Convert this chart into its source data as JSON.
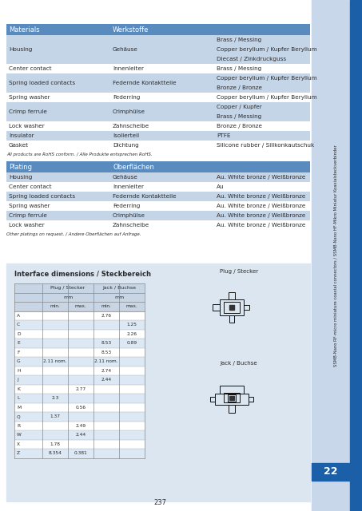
{
  "bg_color": "#dce6f0",
  "white": "#ffffff",
  "header_blue": "#5a8bbf",
  "row_light": "#c5d5e8",
  "row_white": "#ffffff",
  "text_dark": "#2a2a2a",
  "sidebar_blue": "#1a5fa8",
  "sidebar_light": "#c8d8ea",
  "page_bg": "#ffffff",
  "page_number": "237",
  "chapter_number": "22",
  "sidebar_text": "SSMB-Nano RF-micro miniature coaxial connectors / SSMB-Nano HF-Mikro Miniatur Koaxialsteckverbinder",
  "materials_title": "Materials",
  "werkstoffe_title": "Werkstoffe",
  "materials_rows": [
    [
      "Housing",
      "Gehäuse",
      [
        "Brass / Messing",
        "Copper berylium / Kupfer Berylium",
        "Diecast / Zinkdruckguss"
      ]
    ],
    [
      "Center contact",
      "Innenleiter",
      [
        "Brass / Messing"
      ]
    ],
    [
      "Spring loaded contacts",
      "Federnde Kontaktteile",
      [
        "Copper berylium / Kupfer Berylium",
        "Bronze / Bronze"
      ]
    ],
    [
      "Spring washer",
      "Federring",
      [
        "Copper berylium / Kupfer Berylium"
      ]
    ],
    [
      "Crimp ferrule",
      "Crimphülse",
      [
        "Copper / Kupfer",
        "Brass / Messing"
      ]
    ],
    [
      "Lock washer",
      "Zahnscheibe",
      [
        "Bronze / Bronze"
      ]
    ],
    [
      "Insulator",
      "Isolierteil",
      [
        "PTFE"
      ]
    ],
    [
      "Gasket",
      "Dichtung",
      [
        "Silicone rubber / Silikonkautschuk"
      ]
    ]
  ],
  "rohs_note": "All products are RoHS conform. / Alle Produkte entsprechen RoHS.",
  "plating_title": "Plating",
  "oberflachen_title": "Oberflächen",
  "plating_rows": [
    [
      "Housing",
      "Gehäuse",
      "Au. White bronze / Weißbronze"
    ],
    [
      "Center contact",
      "Innenleiter",
      "Au"
    ],
    [
      "Spring loaded contacts",
      "Federnde Kontaktteile",
      "Au. White bronze / Weißbronze"
    ],
    [
      "Spring washer",
      "Federring",
      "Au. White bronze / Weißbronze"
    ],
    [
      "Crimp ferrule",
      "Crimphülse",
      "Au. White bronze / Weißbronze"
    ],
    [
      "Lock washer",
      "Zahnscheibe",
      "Au. White bronze / Weißbronze"
    ]
  ],
  "other_note": "Other platings on request. / Andere Oberflächen auf Anfrage.",
  "interface_title": "Interface dimensions / Steckbereich",
  "table_rows": [
    [
      "A",
      "",
      "",
      "2.76",
      ""
    ],
    [
      "C",
      "",
      "",
      "",
      "1.25"
    ],
    [
      "D",
      "",
      "",
      "",
      "2.26"
    ],
    [
      "E",
      "",
      "",
      "8.53",
      "0.89"
    ],
    [
      "F",
      "",
      "",
      "8.53",
      ""
    ],
    [
      "G",
      "2.11 nom.",
      "",
      "2.11 nom.",
      ""
    ],
    [
      "H",
      "",
      "",
      "2.74",
      ""
    ],
    [
      "J",
      "",
      "",
      "2.44",
      ""
    ],
    [
      "K",
      "",
      "2.77",
      "",
      ""
    ],
    [
      "L",
      "2.3",
      "",
      "",
      ""
    ],
    [
      "M",
      "",
      "0.56",
      "",
      ""
    ],
    [
      "Q",
      "1.37",
      "",
      "",
      ""
    ],
    [
      "R",
      "",
      "2.49",
      "",
      ""
    ],
    [
      "W",
      "",
      "2.44",
      "",
      ""
    ],
    [
      "X",
      "1.78",
      "",
      "",
      ""
    ],
    [
      "Z",
      "8.354",
      "0.381",
      "",
      ""
    ]
  ]
}
